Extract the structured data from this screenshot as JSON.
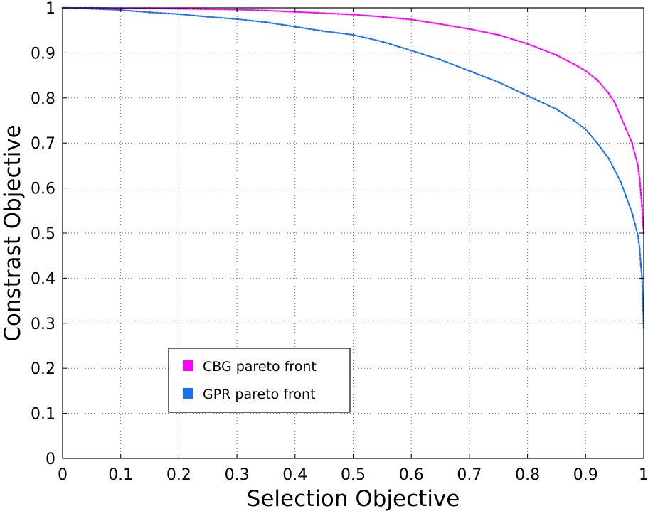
{
  "chart_data": {
    "type": "scatter",
    "title": "",
    "xlabel": "Selection Objective",
    "ylabel": "Constrast Objective",
    "xlim": [
      0,
      1
    ],
    "ylim": [
      0,
      1
    ],
    "grid": true,
    "legend_position": "lower-left",
    "x_ticks": [
      "0",
      "0.1",
      "0.2",
      "0.3",
      "0.4",
      "0.5",
      "0.6",
      "0.7",
      "0.8",
      "0.9",
      "1"
    ],
    "y_ticks": [
      "0",
      "0.1",
      "0.2",
      "0.3",
      "0.4",
      "0.5",
      "0.6",
      "0.7",
      "0.8",
      "0.9",
      "1"
    ],
    "series": [
      {
        "name": "CBG pareto front",
        "color": "#ff00ff",
        "points": [
          [
            0.0,
            1.0
          ],
          [
            0.05,
            1.0
          ],
          [
            0.1,
            0.999
          ],
          [
            0.15,
            0.999
          ],
          [
            0.2,
            0.998
          ],
          [
            0.25,
            0.997
          ],
          [
            0.3,
            0.996
          ],
          [
            0.35,
            0.994
          ],
          [
            0.4,
            0.991
          ],
          [
            0.45,
            0.988
          ],
          [
            0.5,
            0.985
          ],
          [
            0.55,
            0.98
          ],
          [
            0.6,
            0.974
          ],
          [
            0.65,
            0.964
          ],
          [
            0.7,
            0.953
          ],
          [
            0.75,
            0.94
          ],
          [
            0.8,
            0.92
          ],
          [
            0.85,
            0.895
          ],
          [
            0.88,
            0.875
          ],
          [
            0.9,
            0.86
          ],
          [
            0.92,
            0.84
          ],
          [
            0.94,
            0.81
          ],
          [
            0.95,
            0.79
          ],
          [
            0.96,
            0.76
          ],
          [
            0.97,
            0.73
          ],
          [
            0.98,
            0.7
          ],
          [
            0.985,
            0.675
          ],
          [
            0.99,
            0.65
          ],
          [
            0.993,
            0.62
          ],
          [
            0.995,
            0.59
          ],
          [
            0.997,
            0.56
          ],
          [
            0.998,
            0.53
          ],
          [
            1.0,
            0.5
          ]
        ]
      },
      {
        "name": "GPR pareto front",
        "color": "#1a6fee",
        "points": [
          [
            0.0,
            1.0
          ],
          [
            0.05,
            0.998
          ],
          [
            0.1,
            0.995
          ],
          [
            0.15,
            0.99
          ],
          [
            0.2,
            0.986
          ],
          [
            0.25,
            0.98
          ],
          [
            0.3,
            0.975
          ],
          [
            0.35,
            0.968
          ],
          [
            0.4,
            0.958
          ],
          [
            0.45,
            0.948
          ],
          [
            0.5,
            0.94
          ],
          [
            0.55,
            0.925
          ],
          [
            0.6,
            0.905
          ],
          [
            0.65,
            0.885
          ],
          [
            0.7,
            0.86
          ],
          [
            0.75,
            0.835
          ],
          [
            0.8,
            0.805
          ],
          [
            0.85,
            0.775
          ],
          [
            0.88,
            0.75
          ],
          [
            0.9,
            0.73
          ],
          [
            0.92,
            0.7
          ],
          [
            0.94,
            0.665
          ],
          [
            0.95,
            0.64
          ],
          [
            0.96,
            0.615
          ],
          [
            0.97,
            0.58
          ],
          [
            0.98,
            0.545
          ],
          [
            0.985,
            0.52
          ],
          [
            0.99,
            0.495
          ],
          [
            0.993,
            0.465
          ],
          [
            0.995,
            0.43
          ],
          [
            0.997,
            0.4
          ],
          [
            0.998,
            0.36
          ],
          [
            0.999,
            0.33
          ],
          [
            1.0,
            0.29
          ]
        ]
      }
    ]
  }
}
